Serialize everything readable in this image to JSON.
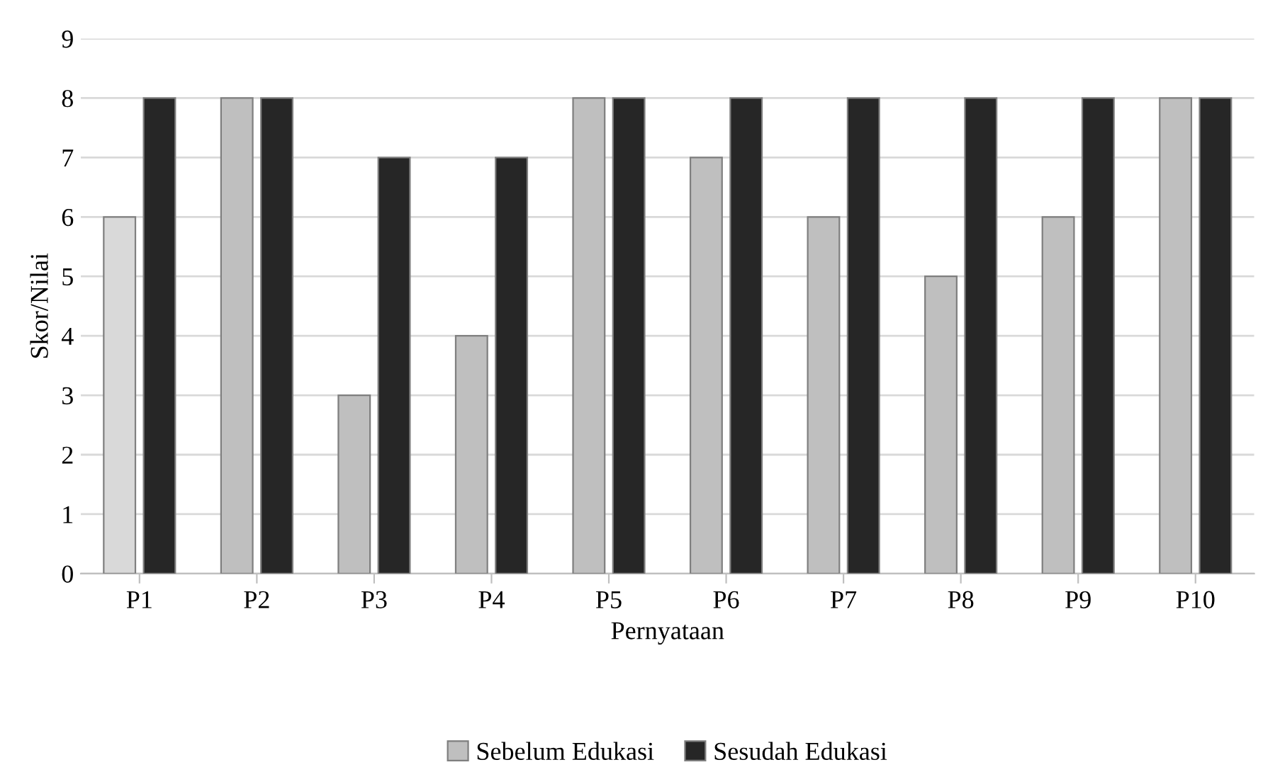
{
  "chart_data": {
    "type": "bar",
    "xlabel": "Pernyataan",
    "ylabel": "Skor/Nilai",
    "categories": [
      "P1",
      "P2",
      "P3",
      "P4",
      "P5",
      "P6",
      "P7",
      "P8",
      "P9",
      "P10"
    ],
    "series": [
      {
        "name": "Sebelum Edukasi",
        "color": "#bfbfbf",
        "colors": [
          "#d9d9d9",
          "#bfbfbf",
          "#bfbfbf",
          "#bfbfbf",
          "#bfbfbf",
          "#bfbfbf",
          "#bfbfbf",
          "#bfbfbf",
          "#bfbfbf",
          "#bfbfbf"
        ],
        "values": [
          6,
          8,
          3,
          4,
          8,
          7,
          6,
          5,
          6,
          8
        ]
      },
      {
        "name": "Sesudah Edukasi",
        "color": "#262626",
        "values": [
          8,
          8,
          7,
          7,
          8,
          8,
          8,
          8,
          8,
          8
        ]
      }
    ],
    "ylim": [
      0,
      9
    ],
    "yticks": [
      0,
      1,
      2,
      3,
      4,
      5,
      6,
      7,
      8,
      9
    ],
    "grid": "y",
    "legend": "bottom"
  }
}
